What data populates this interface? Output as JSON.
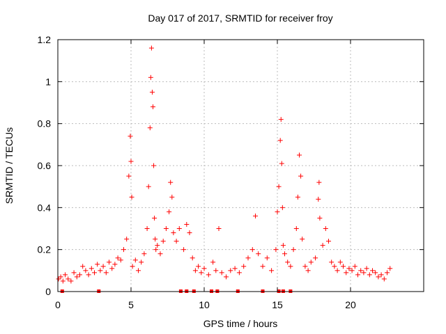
{
  "chart_data": {
    "type": "scatter",
    "title": "Day 017 of 2017, SRMTID for receiver froy",
    "xlabel": "GPS time / hours",
    "ylabel": "SRMTID / TECUs",
    "xlim": [
      0,
      25
    ],
    "ylim": [
      0,
      1.2
    ],
    "x_ticks": [
      0,
      5,
      10,
      15,
      20
    ],
    "x_tick_labels": [
      "0",
      "5",
      "10",
      "15",
      "20"
    ],
    "y_ticks": [
      0,
      0.2,
      0.4,
      0.6,
      0.8,
      1.0,
      1.2
    ],
    "y_tick_labels": [
      "0",
      "0.2",
      "0.4",
      "0.6",
      "0.8",
      "1",
      "1.2"
    ],
    "grid": true,
    "marker": "+",
    "color": "#ff0000",
    "series": [
      {
        "name": "SRMTID",
        "x": [
          0.05,
          0.2,
          0.35,
          0.5,
          0.7,
          0.9,
          1.1,
          1.3,
          1.5,
          1.7,
          1.9,
          2.1,
          2.3,
          2.5,
          2.7,
          2.9,
          3.1,
          3.3,
          3.5,
          3.7,
          3.9,
          4.1,
          4.3,
          4.5,
          4.7,
          4.85,
          4.95,
          5.0,
          5.05,
          5.1,
          5.3,
          5.5,
          5.7,
          5.9,
          6.1,
          6.2,
          6.3,
          6.35,
          6.4,
          6.45,
          6.5,
          6.55,
          6.6,
          6.65,
          6.7,
          6.8,
          7.0,
          7.2,
          7.4,
          7.6,
          7.7,
          7.8,
          7.9,
          8.1,
          8.3,
          8.6,
          8.8,
          9.0,
          9.2,
          9.4,
          9.6,
          9.8,
          10.0,
          10.3,
          10.6,
          10.8,
          11.0,
          11.2,
          11.5,
          11.8,
          12.1,
          12.4,
          12.7,
          13.0,
          13.3,
          13.5,
          13.7,
          14.0,
          14.3,
          14.6,
          14.9,
          15.0,
          15.1,
          15.2,
          15.25,
          15.3,
          15.35,
          15.4,
          15.5,
          15.7,
          15.9,
          16.1,
          16.3,
          16.4,
          16.5,
          16.6,
          16.7,
          16.9,
          17.1,
          17.3,
          17.6,
          17.8,
          17.85,
          17.9,
          18.1,
          18.3,
          18.5,
          18.7,
          18.9,
          19.1,
          19.3,
          19.5,
          19.7,
          19.9,
          20.1,
          20.3,
          20.5,
          20.7,
          20.9,
          21.1,
          21.3,
          21.5,
          21.7,
          21.9,
          22.1,
          22.3,
          22.5,
          22.7
        ],
        "y": [
          0.06,
          0.07,
          0.05,
          0.08,
          0.06,
          0.05,
          0.09,
          0.07,
          0.08,
          0.12,
          0.1,
          0.08,
          0.11,
          0.09,
          0.13,
          0.1,
          0.12,
          0.09,
          0.14,
          0.11,
          0.13,
          0.16,
          0.15,
          0.2,
          0.25,
          0.55,
          0.74,
          0.62,
          0.45,
          0.12,
          0.15,
          0.1,
          0.14,
          0.18,
          0.3,
          0.5,
          0.78,
          1.02,
          1.16,
          0.95,
          0.88,
          0.6,
          0.35,
          0.25,
          0.2,
          0.22,
          0.18,
          0.24,
          0.3,
          0.38,
          0.52,
          0.45,
          0.28,
          0.24,
          0.3,
          0.2,
          0.32,
          0.28,
          0.16,
          0.1,
          0.12,
          0.09,
          0.11,
          0.08,
          0.14,
          0.1,
          0.3,
          0.09,
          0.07,
          0.1,
          0.11,
          0.09,
          0.12,
          0.16,
          0.2,
          0.36,
          0.18,
          0.12,
          0.16,
          0.1,
          0.2,
          0.38,
          0.5,
          0.72,
          0.82,
          0.61,
          0.4,
          0.22,
          0.18,
          0.14,
          0.12,
          0.2,
          0.3,
          0.45,
          0.65,
          0.55,
          0.25,
          0.12,
          0.1,
          0.14,
          0.16,
          0.44,
          0.52,
          0.35,
          0.22,
          0.3,
          0.24,
          0.14,
          0.12,
          0.1,
          0.14,
          0.12,
          0.09,
          0.11,
          0.1,
          0.12,
          0.08,
          0.1,
          0.09,
          0.11,
          0.08,
          0.1,
          0.09,
          0.07,
          0.08,
          0.06,
          0.09,
          0.11
        ],
        "data_gaps_x": [
          0.3,
          2.8,
          8.4,
          8.8,
          9.3,
          10.5,
          10.9,
          12.3,
          14.0,
          15.1,
          15.4,
          15.9
        ]
      }
    ]
  }
}
